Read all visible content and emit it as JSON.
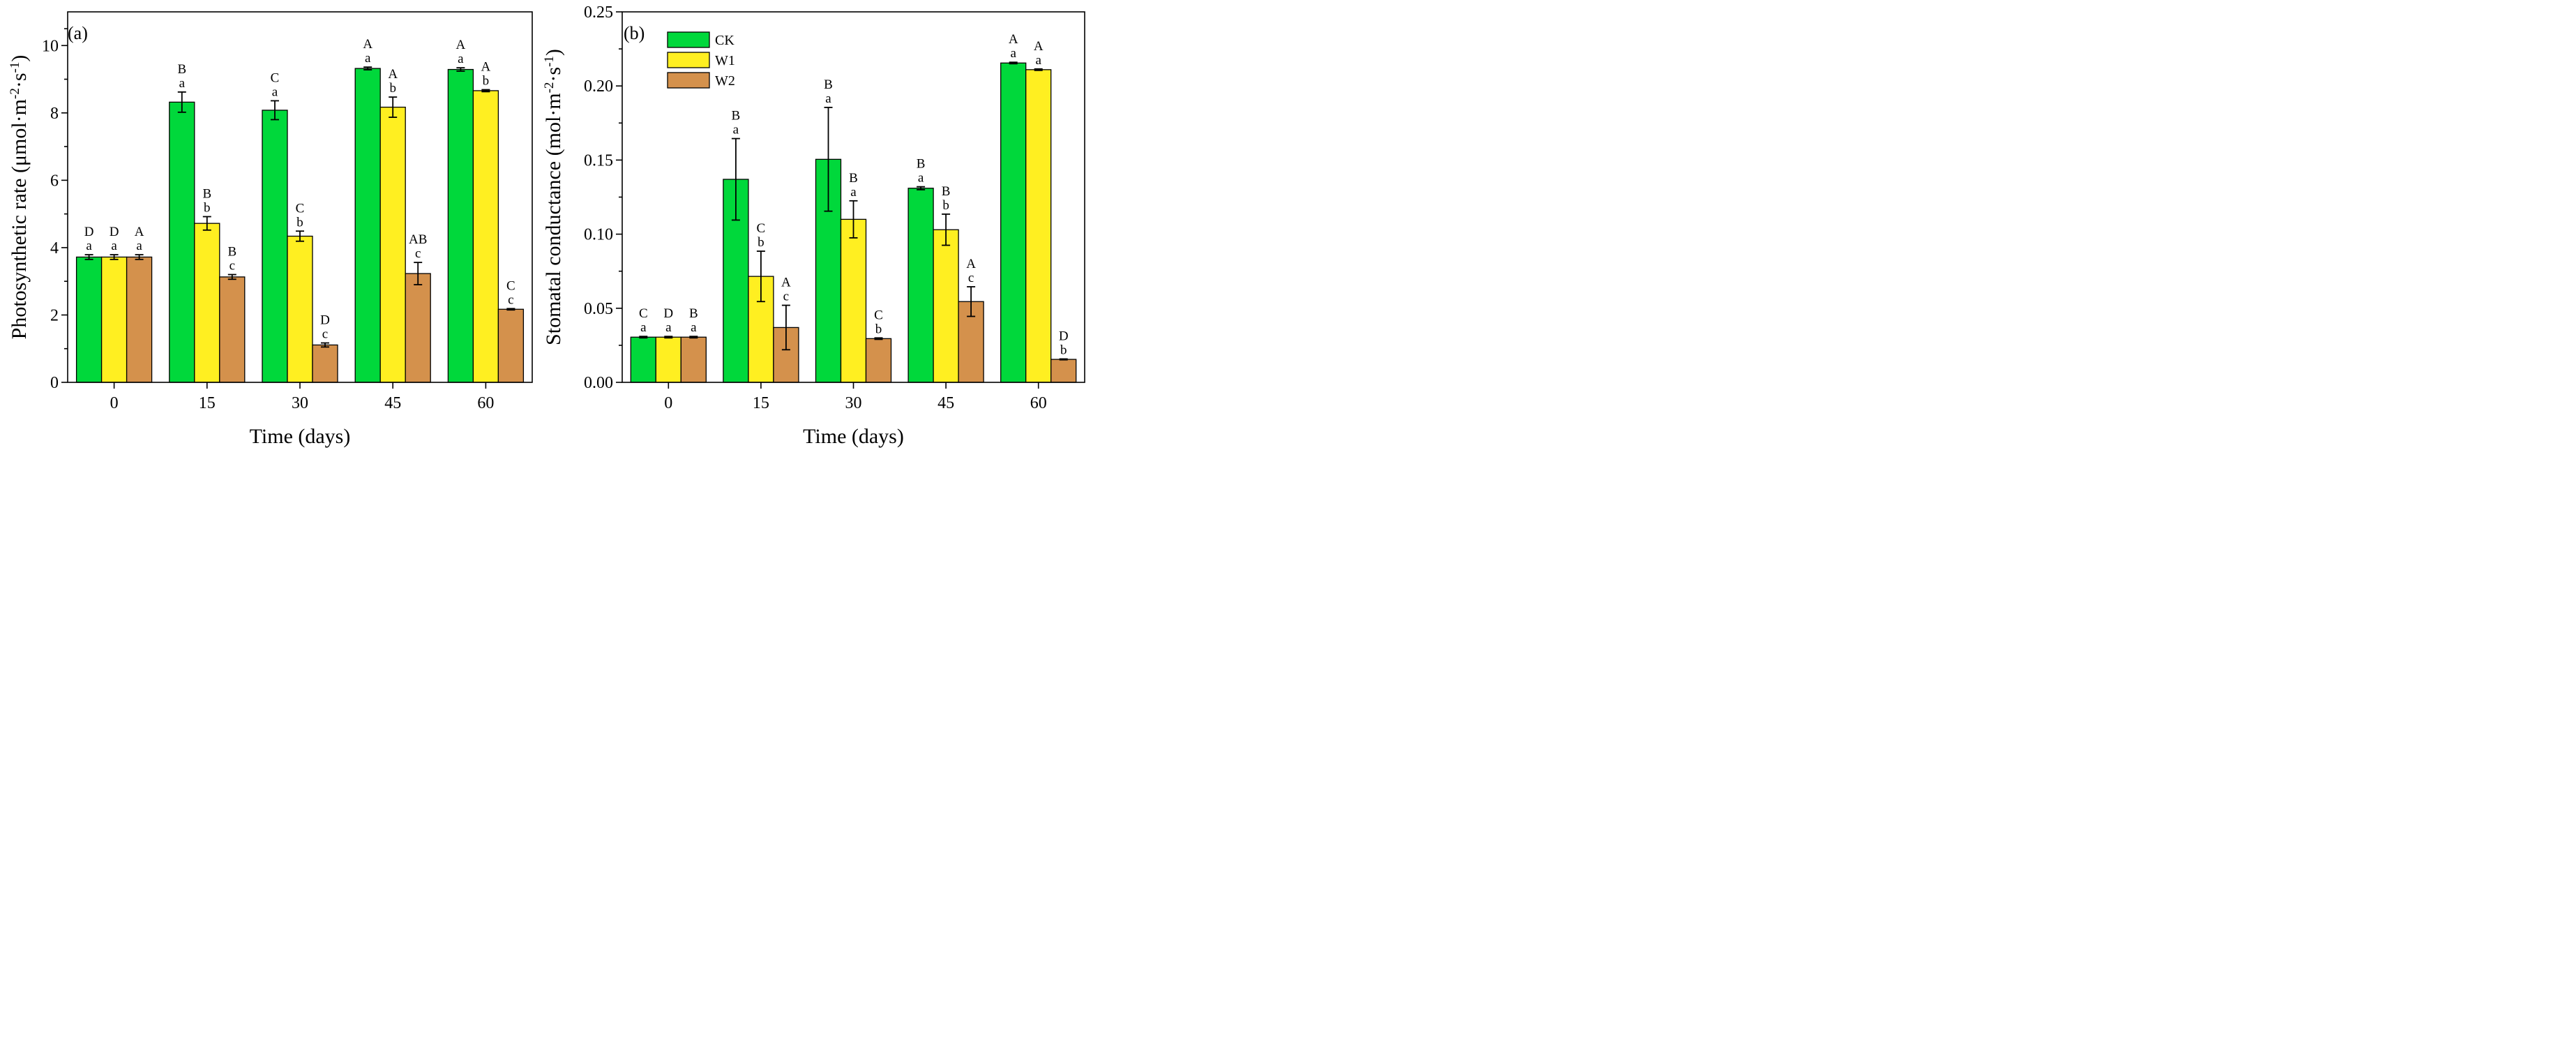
{
  "colors": {
    "CK": "#00d83b",
    "W1": "#ffef21",
    "W2": "#d4914c"
  },
  "chart_data": [
    {
      "type": "bar",
      "panel_label": "(a)",
      "categories": [
        "0",
        "15",
        "30",
        "45",
        "60"
      ],
      "xlabel": "Time (days)",
      "ylabel": "Photosynthetic rate (μmol·m⁻²·s⁻¹)",
      "ylim": [
        0,
        11
      ],
      "yticks": [
        "0",
        "2",
        "4",
        "6",
        "8",
        "10"
      ],
      "ytick_values": [
        0,
        2,
        4,
        6,
        8,
        10
      ],
      "legend": false,
      "series": [
        {
          "name": "CK",
          "values": [
            3.72,
            8.32,
            8.08,
            9.32,
            9.29
          ],
          "errors": [
            0.07,
            0.3,
            0.28,
            0.04,
            0.05
          ],
          "letters_upper": [
            "D",
            "B",
            "C",
            "A",
            "A"
          ],
          "letters_lower": [
            "a",
            "a",
            "a",
            "a",
            "a"
          ]
        },
        {
          "name": "W1",
          "values": [
            3.72,
            4.72,
            4.34,
            8.17,
            8.66
          ],
          "errors": [
            0.07,
            0.2,
            0.15,
            0.3,
            0.03
          ],
          "letters_upper": [
            "D",
            "B",
            "C",
            "A",
            "A"
          ],
          "letters_lower": [
            "a",
            "b",
            "b",
            "b",
            "b"
          ]
        },
        {
          "name": "W2",
          "values": [
            3.72,
            3.13,
            1.11,
            3.23,
            2.17
          ],
          "errors": [
            0.07,
            0.07,
            0.06,
            0.33,
            0.02
          ],
          "letters_upper": [
            "A",
            "B",
            "D",
            "AB",
            "C"
          ],
          "letters_lower": [
            "a",
            "c",
            "c",
            "c",
            "c"
          ]
        }
      ]
    },
    {
      "type": "bar",
      "panel_label": "(b)",
      "categories": [
        "0",
        "15",
        "30",
        "45",
        "60"
      ],
      "xlabel": "Time (days)",
      "ylabel": "Stomatal conductance (mol·m⁻²·s⁻¹)",
      "ylim": [
        0,
        0.25
      ],
      "yticks": [
        "0.00",
        "0.05",
        "0.10",
        "0.15",
        "0.20",
        "0.25"
      ],
      "ytick_values": [
        0,
        0.05,
        0.1,
        0.15,
        0.2,
        0.25
      ],
      "legend": true,
      "legend_position": "top-left",
      "series": [
        {
          "name": "CK",
          "values": [
            0.0305,
            0.137,
            0.1505,
            0.131,
            0.2155
          ],
          "errors": [
            0.0005,
            0.0275,
            0.035,
            0.001,
            0.0005
          ],
          "letters_upper": [
            "C",
            "B",
            "B",
            "B",
            "A"
          ],
          "letters_lower": [
            "a",
            "a",
            "a",
            "a",
            "a"
          ]
        },
        {
          "name": "W1",
          "values": [
            0.0305,
            0.0715,
            0.11,
            0.103,
            0.211
          ],
          "errors": [
            0.0005,
            0.017,
            0.0125,
            0.0105,
            0.0005
          ],
          "letters_upper": [
            "D",
            "C",
            "B",
            "B",
            "A"
          ],
          "letters_lower": [
            "a",
            "b",
            "a",
            "b",
            "a"
          ]
        },
        {
          "name": "W2",
          "values": [
            0.0305,
            0.037,
            0.0295,
            0.0545,
            0.0155
          ],
          "errors": [
            0.0005,
            0.015,
            0.0005,
            0.01,
            0.0003
          ],
          "letters_upper": [
            "B",
            "A",
            "C",
            "A",
            "D"
          ],
          "letters_lower": [
            "a",
            "c",
            "b",
            "c",
            "b"
          ]
        }
      ]
    }
  ]
}
